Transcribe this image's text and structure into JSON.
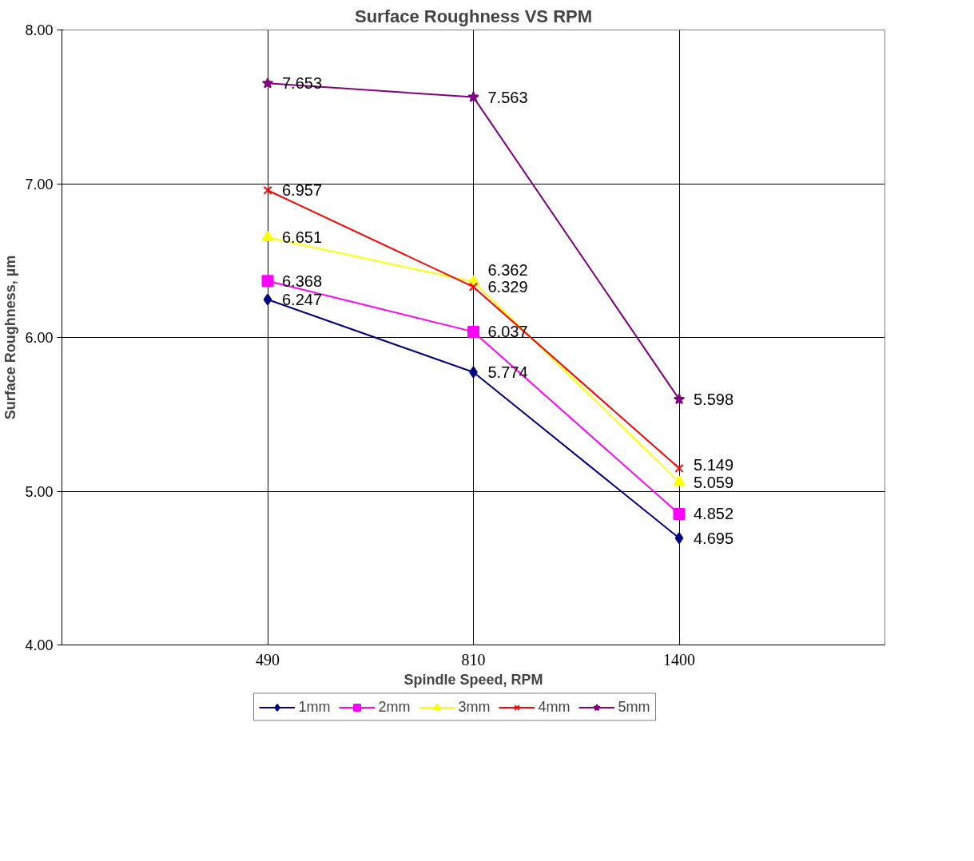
{
  "chart_data": {
    "type": "line",
    "title": "Surface Roughness VS RPM",
    "xlabel": "Spindle Speed, RPM",
    "ylabel": "Surface Roughness, µm",
    "categories": [
      "490",
      "810",
      "1400"
    ],
    "series": [
      {
        "name": "1mm",
        "color": "#000080",
        "marker": "diamond",
        "values": [
          6.247,
          5.774,
          4.695
        ]
      },
      {
        "name": "2mm",
        "color": "#ff00ff",
        "marker": "square",
        "values": [
          6.368,
          6.037,
          4.852
        ]
      },
      {
        "name": "3mm",
        "color": "#ffff00",
        "marker": "triangle",
        "values": [
          6.651,
          6.362,
          5.059
        ]
      },
      {
        "name": "4mm",
        "color": "#ff0000",
        "marker": "cross",
        "values": [
          6.957,
          6.329,
          5.149
        ]
      },
      {
        "name": "5mm",
        "color": "#800080",
        "marker": "star",
        "values": [
          7.653,
          7.563,
          5.598
        ]
      }
    ],
    "ylim": [
      4,
      8
    ],
    "yticks": [
      {
        "value": 4,
        "label": "4.00"
      },
      {
        "value": 5,
        "label": "5.00"
      },
      {
        "value": 6,
        "label": "6.00"
      },
      {
        "value": 7,
        "label": "7.00"
      },
      {
        "value": 8,
        "label": "8.00"
      }
    ],
    "grid": true,
    "legend": "bottom",
    "data_labels": true,
    "line_style": "solid"
  }
}
